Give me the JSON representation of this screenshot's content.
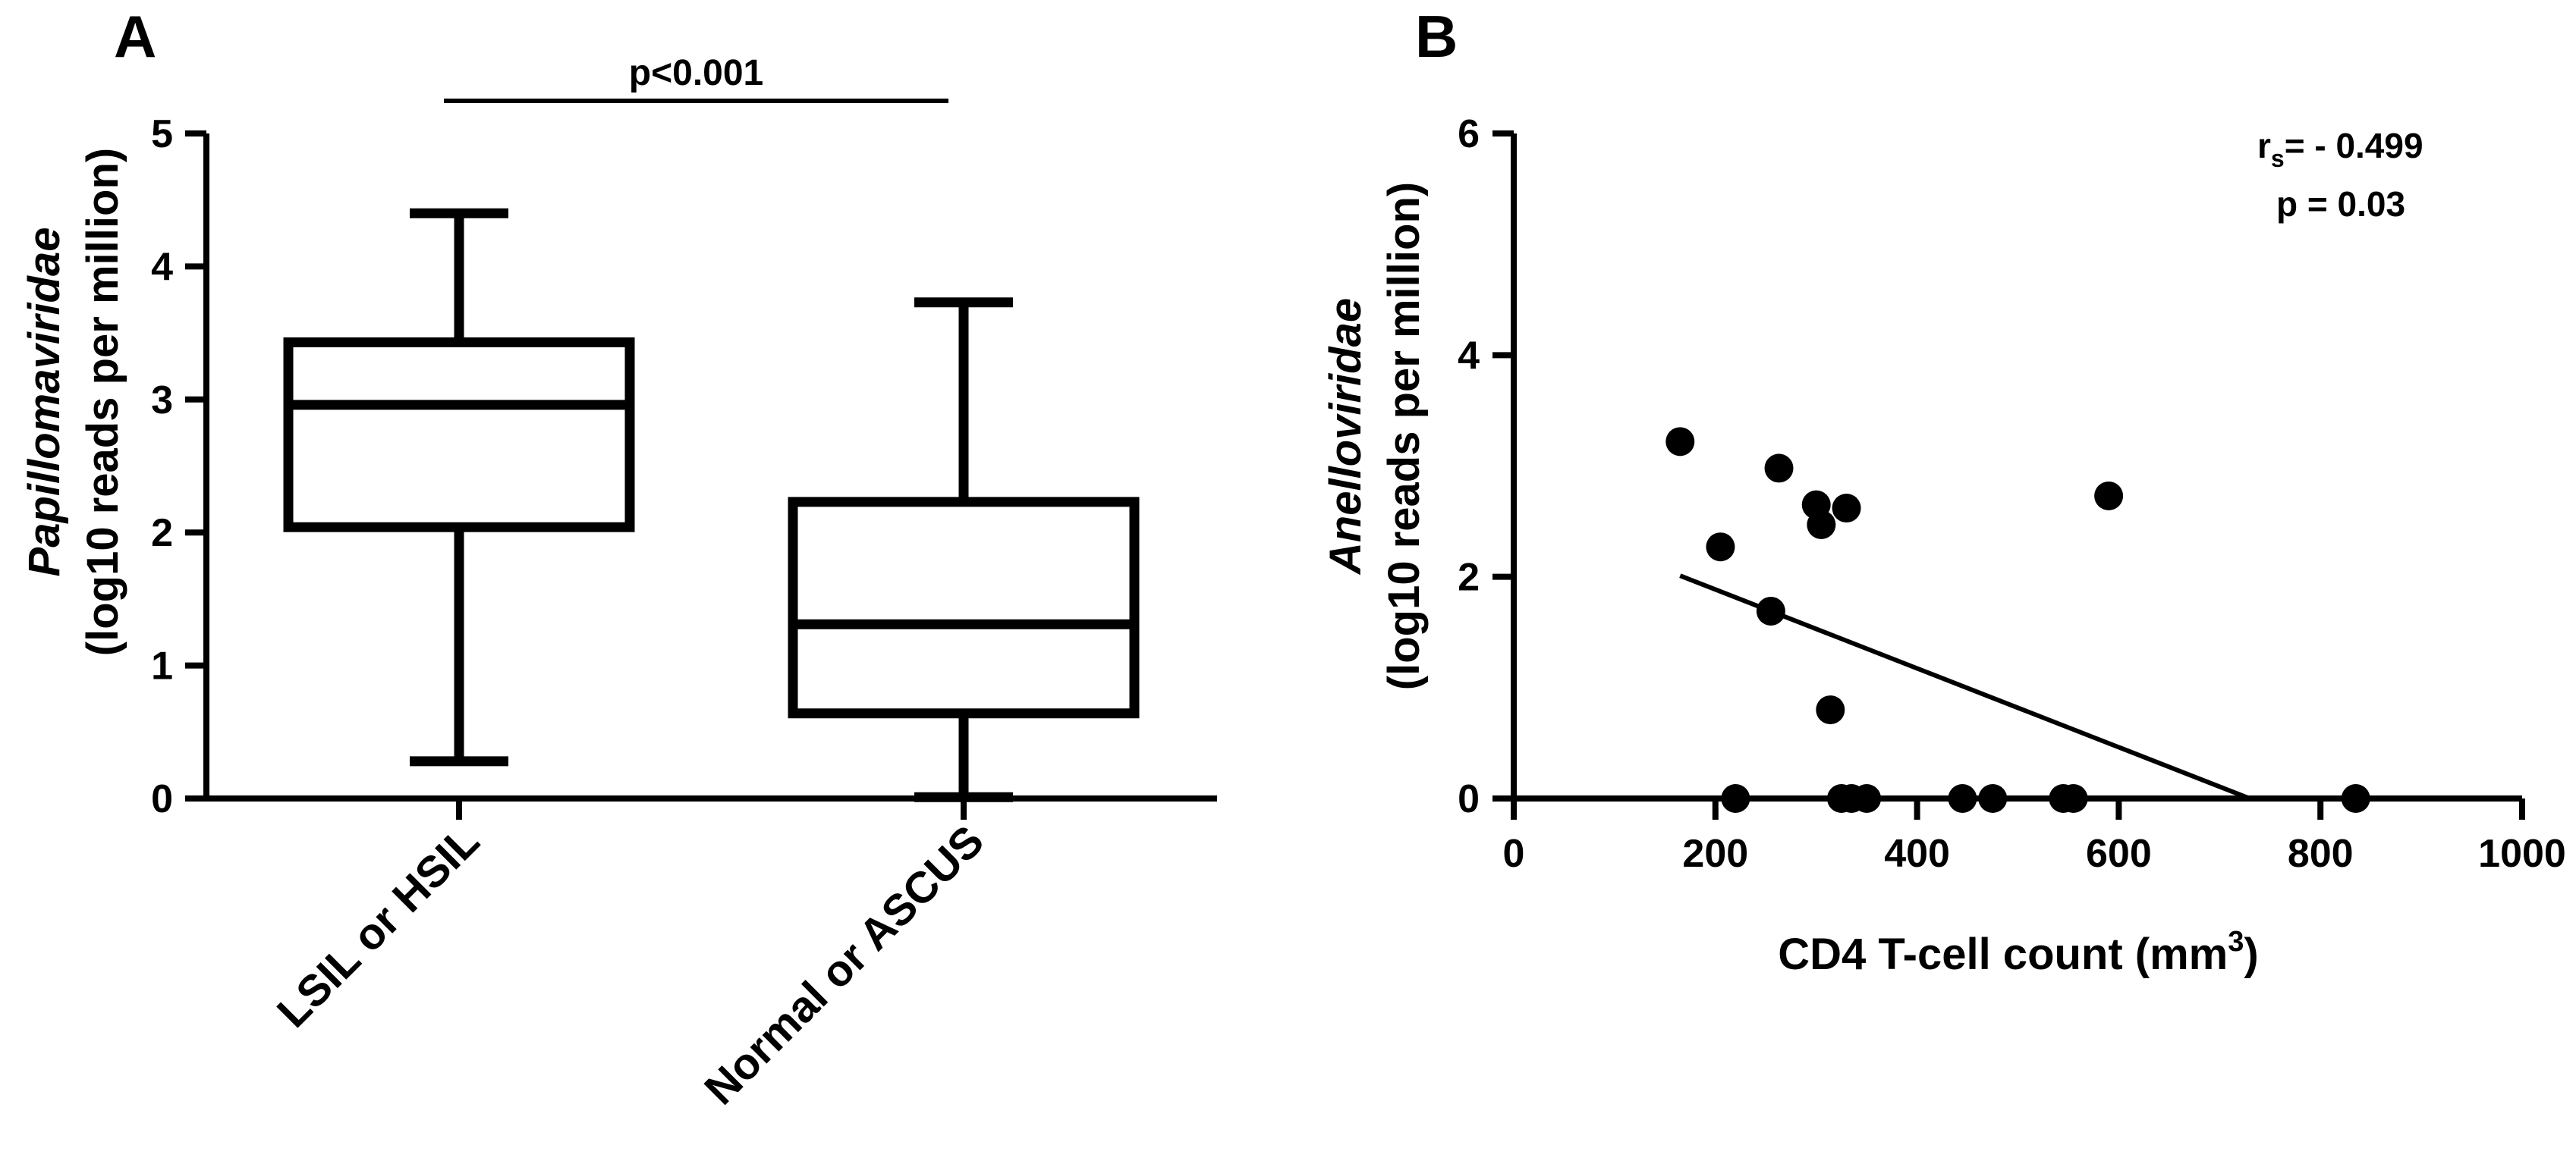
{
  "chart_data": [
    {
      "panel": "A",
      "type": "box",
      "ylabel_italic": "Papillomaviridae",
      "ylabel": "(log10 reads per million)",
      "ylim": [
        0,
        5
      ],
      "yticks": [
        "0",
        "1",
        "2",
        "3",
        "4",
        "5"
      ],
      "categories": [
        "LSIL or HSIL",
        "Normal or ASCUS"
      ],
      "boxes": [
        {
          "name": "LSIL or HSIL",
          "min": 0.28,
          "q1": 2.04,
          "median": 2.96,
          "q3": 3.43,
          "max": 4.4
        },
        {
          "name": "Normal or ASCUS",
          "min": 0.01,
          "q1": 0.64,
          "median": 1.31,
          "q3": 2.23,
          "max": 3.73
        }
      ],
      "significance": {
        "text": "p<0.001",
        "from": 0,
        "to": 1
      }
    },
    {
      "panel": "B",
      "type": "scatter",
      "xlabel": "CD4 T-cell count (mm",
      "xlabel_sup": "3",
      "xlabel_close": ")",
      "ylabel_italic": "Anelloviridae",
      "ylabel": "(log10 reads per million)",
      "xlim": [
        0,
        1000
      ],
      "ylim": [
        0,
        6
      ],
      "xticks": [
        "0",
        "200",
        "400",
        "600",
        "800",
        "1000"
      ],
      "yticks": [
        "0",
        "2",
        "4",
        "6"
      ],
      "points": [
        {
          "x": 165,
          "y": 3.22
        },
        {
          "x": 205,
          "y": 2.27
        },
        {
          "x": 263,
          "y": 2.98
        },
        {
          "x": 300,
          "y": 2.65
        },
        {
          "x": 305,
          "y": 2.47
        },
        {
          "x": 330,
          "y": 2.62
        },
        {
          "x": 590,
          "y": 2.73
        },
        {
          "x": 255,
          "y": 1.69
        },
        {
          "x": 314,
          "y": 0.8
        },
        {
          "x": 220,
          "y": 0
        },
        {
          "x": 325,
          "y": 0
        },
        {
          "x": 335,
          "y": 0
        },
        {
          "x": 350,
          "y": 0
        },
        {
          "x": 445,
          "y": 0
        },
        {
          "x": 475,
          "y": 0
        },
        {
          "x": 545,
          "y": 0
        },
        {
          "x": 555,
          "y": 0
        },
        {
          "x": 835,
          "y": 0
        }
      ],
      "trendline": {
        "x0": 165,
        "y0": 2.01,
        "x1": 730,
        "y1": 0
      },
      "annotation": {
        "rs_label": "r",
        "rs_sub": "s",
        "rs_value": "= - 0.499",
        "p_text": "p = 0.03"
      }
    }
  ]
}
